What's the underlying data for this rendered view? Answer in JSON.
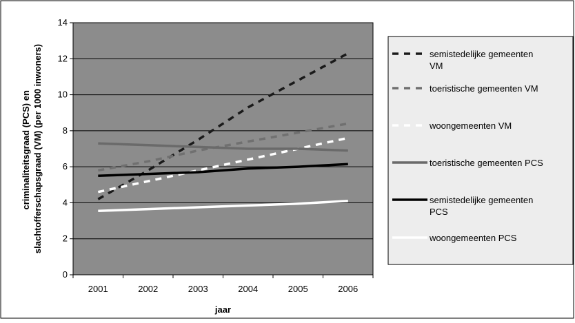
{
  "chart_data": {
    "type": "line",
    "title": "",
    "xlabel": "jaar",
    "ylabel": "criminaliteitsgraad (PCS) en slachtofferschapsgraad (VM) (per 1000 inwoners)",
    "ylabel_lines": [
      "criminaliteitsgraad (PCS) en",
      "slachtofferschapsgraad (VM) (per 1000 inwoners)"
    ],
    "x": [
      "2001",
      "2002",
      "2003",
      "2004",
      "2005",
      "2006"
    ],
    "ylim": [
      0,
      14
    ],
    "yticks": [
      0,
      2,
      4,
      6,
      8,
      10,
      12,
      14
    ],
    "grid": true,
    "legend_position": "right",
    "plot_background": "#8c8c8c",
    "legend_background": "#ededed",
    "series": [
      {
        "name": "semistedelijke gemeenten VM",
        "name_lines": [
          "semistedelijke gemeenten",
          "VM"
        ],
        "values": [
          4.2,
          5.8,
          7.5,
          9.3,
          10.8,
          12.3
        ],
        "color": "#1a1a1a",
        "dashed": true
      },
      {
        "name": "toeristische gemeenten VM",
        "name_lines": [
          "toeristische gemeenten VM"
        ],
        "values": [
          5.8,
          6.3,
          6.9,
          7.4,
          7.9,
          8.4
        ],
        "color": "#707070",
        "dashed": true
      },
      {
        "name": "woongemeenten VM",
        "name_lines": [
          "woongemeenten VM"
        ],
        "values": [
          4.6,
          5.2,
          5.8,
          6.4,
          7.0,
          7.6
        ],
        "color": "#ffffff",
        "dashed": true
      },
      {
        "name": "toeristische gemeenten PCS",
        "name_lines": [
          "toeristische gemeenten PCS"
        ],
        "values": [
          7.3,
          7.2,
          7.1,
          7.0,
          7.0,
          6.9
        ],
        "color": "#6a6a6a",
        "dashed": false
      },
      {
        "name": "semistedelijke gemeenten PCS",
        "name_lines": [
          "semistedelijke gemeenten",
          "PCS"
        ],
        "values": [
          5.5,
          5.6,
          5.7,
          5.9,
          6.0,
          6.15
        ],
        "color": "#000000",
        "dashed": false
      },
      {
        "name": "woongemeenten PCS",
        "name_lines": [
          "woongemeenten PCS"
        ],
        "values": [
          3.55,
          3.65,
          3.75,
          3.85,
          3.95,
          4.1
        ],
        "color": "#ffffff",
        "dashed": false
      }
    ]
  }
}
